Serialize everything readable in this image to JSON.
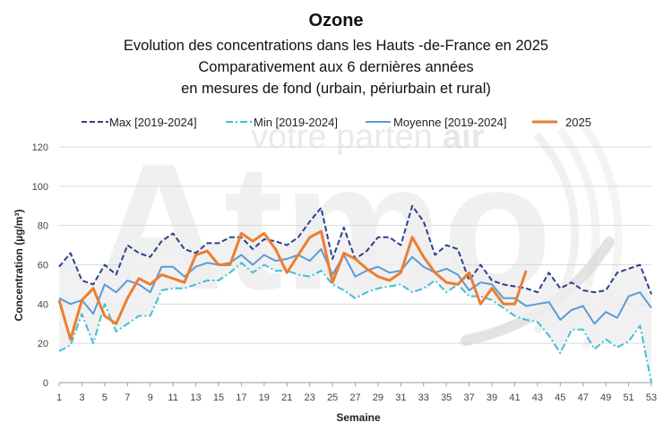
{
  "chart_data": {
    "type": "line",
    "title": "Ozone",
    "subtitle_lines": [
      "Evolution des concentrations dans les Hauts -de-France en 2025",
      "Comparativement aux 6 dernières années",
      "en mesures de fond (urbain, périurbain et rural)"
    ],
    "watermark": "votre partenair Atmo",
    "xlabel": "Semaine",
    "ylabel": "Concentration (µg/m³)",
    "xlim": [
      1,
      53
    ],
    "ylim": [
      0,
      120
    ],
    "x_ticks": [
      1,
      3,
      5,
      7,
      9,
      11,
      13,
      15,
      17,
      19,
      21,
      23,
      25,
      27,
      29,
      31,
      33,
      35,
      37,
      39,
      41,
      43,
      45,
      47,
      49,
      51,
      53
    ],
    "y_ticks": [
      0,
      20,
      40,
      60,
      80,
      100,
      120
    ],
    "grid": "horizontal",
    "legend_position": "top",
    "colors": {
      "max": "#2E3F8F",
      "min": "#3FC0D6",
      "mean": "#5B9BD5",
      "y2025": "#ED7D31",
      "band": "#EFEFEF",
      "grid": "#D9D9D9"
    },
    "series": [
      {
        "name": "Max [2019-2024]",
        "style": "dashed",
        "x": [
          1,
          2,
          3,
          4,
          5,
          6,
          7,
          8,
          9,
          10,
          11,
          12,
          13,
          14,
          15,
          16,
          17,
          18,
          19,
          20,
          21,
          22,
          23,
          24,
          25,
          26,
          27,
          28,
          29,
          30,
          31,
          32,
          33,
          34,
          35,
          36,
          37,
          38,
          39,
          40,
          41,
          42,
          43,
          44,
          45,
          46,
          47,
          48,
          49,
          50,
          51,
          52,
          53
        ],
        "values": [
          59,
          66,
          52,
          50,
          60,
          55,
          70,
          66,
          64,
          72,
          76,
          68,
          66,
          71,
          71,
          74,
          74,
          68,
          73,
          72,
          70,
          74,
          82,
          89,
          63,
          79,
          63,
          67,
          74,
          74,
          70,
          90,
          82,
          65,
          70,
          68,
          52,
          60,
          52,
          50,
          49,
          48,
          46,
          56,
          48,
          51,
          47,
          46,
          47,
          56,
          58,
          60,
          45
        ]
      },
      {
        "name": "Min [2019-2024]",
        "style": "dash-dot",
        "x": [
          1,
          2,
          3,
          4,
          5,
          6,
          7,
          8,
          9,
          10,
          11,
          12,
          13,
          14,
          15,
          16,
          17,
          18,
          19,
          20,
          21,
          22,
          23,
          24,
          25,
          26,
          27,
          28,
          29,
          30,
          31,
          32,
          33,
          34,
          35,
          36,
          37,
          38,
          39,
          40,
          41,
          42,
          43,
          44,
          45,
          46,
          47,
          48,
          49,
          50,
          51,
          52,
          53
        ],
        "values": [
          16,
          19,
          35,
          20,
          40,
          26,
          30,
          34,
          34,
          47,
          48,
          48,
          50,
          52,
          52,
          56,
          61,
          56,
          60,
          57,
          57,
          55,
          54,
          57,
          50,
          47,
          43,
          46,
          48,
          49,
          50,
          46,
          48,
          52,
          46,
          50,
          44,
          44,
          42,
          38,
          34,
          32,
          31,
          24,
          15,
          27,
          27,
          17,
          22,
          18,
          21,
          29,
          0
        ]
      },
      {
        "name": "Moyenne [2019-2024]",
        "style": "solid",
        "x": [
          1,
          2,
          3,
          4,
          5,
          6,
          7,
          8,
          9,
          10,
          11,
          12,
          13,
          14,
          15,
          16,
          17,
          18,
          19,
          20,
          21,
          22,
          23,
          24,
          25,
          26,
          27,
          28,
          29,
          30,
          31,
          32,
          33,
          34,
          35,
          36,
          37,
          38,
          39,
          40,
          41,
          42,
          43,
          44,
          45,
          46,
          47,
          48,
          49,
          50,
          51,
          52,
          53
        ],
        "values": [
          43,
          40,
          42,
          35,
          50,
          46,
          52,
          50,
          46,
          59,
          59,
          54,
          59,
          61,
          60,
          61,
          65,
          60,
          65,
          62,
          63,
          65,
          62,
          68,
          55,
          65,
          54,
          57,
          59,
          56,
          57,
          64,
          59,
          56,
          58,
          55,
          47,
          51,
          50,
          43,
          43,
          39,
          40,
          41,
          32,
          37,
          39,
          30,
          36,
          33,
          44,
          46,
          38
        ]
      },
      {
        "name": "2025",
        "style": "solid-bold",
        "x": [
          1,
          2,
          3,
          4,
          5,
          6,
          7,
          8,
          9,
          10,
          11,
          12,
          13,
          14,
          15,
          16,
          17,
          18,
          19,
          20,
          21,
          22,
          23,
          24,
          25,
          26,
          27,
          28,
          29,
          30,
          31,
          32,
          33,
          34,
          35,
          36,
          37,
          38,
          39,
          40,
          41,
          42
        ],
        "values": [
          42,
          22,
          42,
          48,
          34,
          30,
          43,
          53,
          50,
          55,
          53,
          51,
          65,
          67,
          60,
          60,
          76,
          72,
          76,
          68,
          56,
          65,
          74,
          77,
          51,
          66,
          63,
          58,
          54,
          52,
          56,
          74,
          64,
          56,
          51,
          50,
          56,
          40,
          48,
          40,
          40,
          57
        ]
      }
    ]
  }
}
